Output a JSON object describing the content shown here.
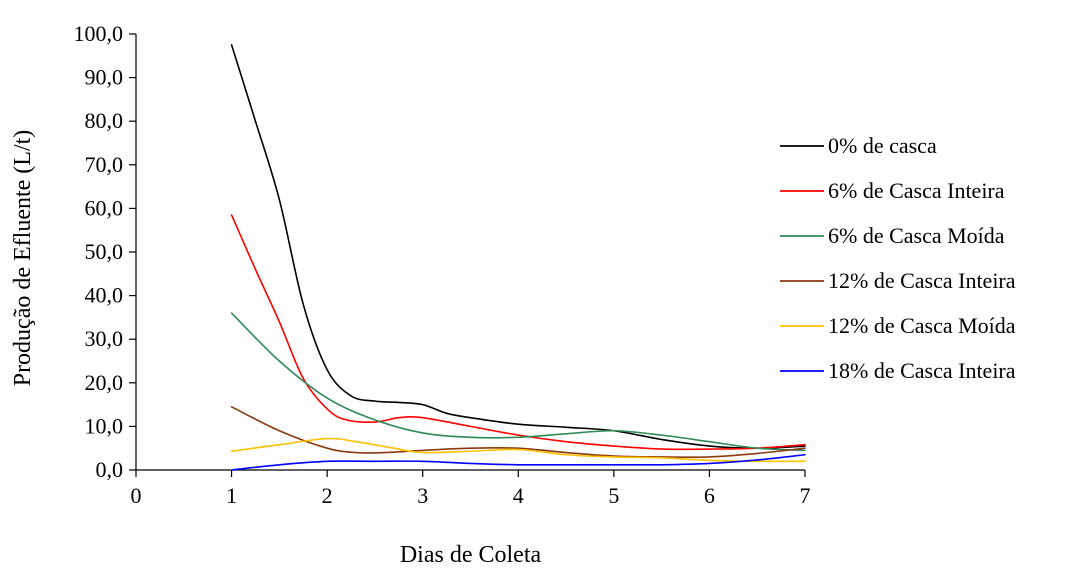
{
  "chart_data": {
    "type": "line",
    "title": "",
    "xlabel": "Dias de Coleta",
    "ylabel": "Produção de Efluente (L/t)",
    "xlim": [
      0,
      7
    ],
    "ylim": [
      0,
      100
    ],
    "x_ticks": [
      "0",
      "1",
      "2",
      "3",
      "4",
      "5",
      "6",
      "7"
    ],
    "y_ticks": [
      "0,0",
      "10,0",
      "20,0",
      "30,0",
      "40,0",
      "50,0",
      "60,0",
      "70,0",
      "80,0",
      "90,0",
      "100,0"
    ],
    "grid": false,
    "legend_position": "right",
    "smooth": true,
    "series": [
      {
        "name": "0% de casca",
        "color": "#000000",
        "points": [
          [
            1,
            97.5
          ],
          [
            1.25,
            80
          ],
          [
            1.5,
            62
          ],
          [
            1.75,
            38
          ],
          [
            2,
            23
          ],
          [
            2.25,
            17
          ],
          [
            2.5,
            15.8
          ],
          [
            2.75,
            15.5
          ],
          [
            3,
            15
          ],
          [
            3.25,
            13
          ],
          [
            3.5,
            12
          ],
          [
            4,
            10.5
          ],
          [
            4.5,
            9.8
          ],
          [
            5,
            9
          ],
          [
            5.5,
            7
          ],
          [
            6,
            5.5
          ],
          [
            6.5,
            5
          ],
          [
            7,
            5.5
          ]
        ]
      },
      {
        "name": "6% de Casca Inteira",
        "color": "#ff0000",
        "points": [
          [
            1,
            58.5
          ],
          [
            1.25,
            46
          ],
          [
            1.5,
            34
          ],
          [
            1.75,
            21
          ],
          [
            2,
            14
          ],
          [
            2.2,
            11.5
          ],
          [
            2.5,
            11
          ],
          [
            2.75,
            12
          ],
          [
            3,
            12
          ],
          [
            3.5,
            10
          ],
          [
            4,
            8
          ],
          [
            4.5,
            6.5
          ],
          [
            5,
            5.5
          ],
          [
            5.5,
            4.8
          ],
          [
            6,
            4.8
          ],
          [
            6.5,
            5
          ],
          [
            7,
            5.8
          ]
        ]
      },
      {
        "name": "6% de Casca Moída",
        "color": "#2e8b57",
        "points": [
          [
            1,
            36
          ],
          [
            1.5,
            25
          ],
          [
            2,
            16.5
          ],
          [
            2.5,
            11.5
          ],
          [
            3,
            8.5
          ],
          [
            3.5,
            7.5
          ],
          [
            4,
            7.5
          ],
          [
            4.5,
            8.3
          ],
          [
            5,
            9
          ],
          [
            5.5,
            8
          ],
          [
            6,
            6.5
          ],
          [
            6.5,
            5
          ],
          [
            7,
            4.5
          ]
        ]
      },
      {
        "name": "12% de Casca Inteira",
        "color": "#8b3a0f",
        "points": [
          [
            1,
            14.5
          ],
          [
            1.5,
            9
          ],
          [
            2,
            5
          ],
          [
            2.3,
            4
          ],
          [
            2.6,
            4
          ],
          [
            3,
            4.5
          ],
          [
            3.5,
            5
          ],
          [
            4,
            5
          ],
          [
            4.5,
            4
          ],
          [
            5,
            3.2
          ],
          [
            5.5,
            3
          ],
          [
            6,
            3
          ],
          [
            6.5,
            3.8
          ],
          [
            7,
            5
          ]
        ]
      },
      {
        "name": "12% de Casca Moída",
        "color": "#ffc000",
        "points": [
          [
            1,
            4.3
          ],
          [
            1.5,
            5.8
          ],
          [
            2,
            7.2
          ],
          [
            2.3,
            6.5
          ],
          [
            2.7,
            5
          ],
          [
            3,
            4
          ],
          [
            3.5,
            4.3
          ],
          [
            4,
            4.7
          ],
          [
            4.5,
            3.5
          ],
          [
            5,
            3
          ],
          [
            5.5,
            2.8
          ],
          [
            6,
            2.2
          ],
          [
            6.5,
            2
          ],
          [
            7,
            2
          ]
        ]
      },
      {
        "name": "18% de Casca Inteira",
        "color": "#0000ff",
        "points": [
          [
            1,
            0
          ],
          [
            1.5,
            1.2
          ],
          [
            2,
            2
          ],
          [
            2.5,
            2
          ],
          [
            3,
            2
          ],
          [
            3.5,
            1.5
          ],
          [
            4,
            1.2
          ],
          [
            4.5,
            1.2
          ],
          [
            5,
            1.2
          ],
          [
            5.5,
            1.2
          ],
          [
            6,
            1.5
          ],
          [
            6.5,
            2.3
          ],
          [
            7,
            3.5
          ]
        ]
      }
    ]
  }
}
